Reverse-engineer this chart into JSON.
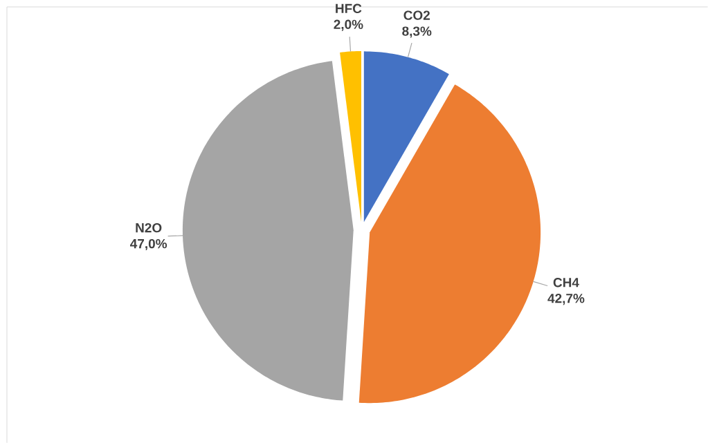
{
  "chart_data": {
    "type": "pie",
    "categories": [
      "CO2",
      "CH4",
      "N2O",
      "HFC"
    ],
    "values": [
      8.3,
      42.7,
      47.0,
      2.0
    ],
    "colors": [
      "#4472c4",
      "#ed7d31",
      "#a5a5a5",
      "#ffc000"
    ],
    "value_labels": [
      "8,3%",
      "42,7%",
      "47,0%",
      "2,0%"
    ]
  }
}
